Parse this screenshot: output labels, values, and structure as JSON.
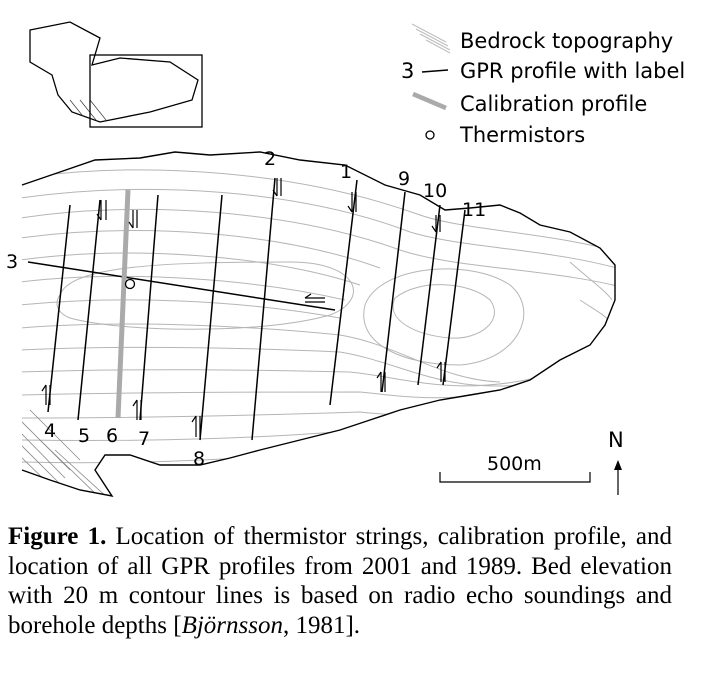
{
  "legend": {
    "bedrock": "Bedrock topography",
    "gpr_number": "3",
    "gpr": "GPR profile with label",
    "calibration": "Calibration profile",
    "thermistors": "Thermistors"
  },
  "profile_labels": {
    "p1": "1",
    "p2": "2",
    "p3": "3",
    "p4": "4",
    "p5": "5",
    "p6": "6",
    "p7": "7",
    "p8": "8",
    "p9": "9",
    "p10": "10",
    "p11": "11"
  },
  "scale_bar": "500m",
  "north": "N",
  "caption": {
    "label": "Figure 1.",
    "text_1": "Location of thermistor strings, calibration profile, and location of all GPR profiles from 2001 and 1989. Bed elevation with 20 m contour lines is based on radio echo soundings and borehole depths [",
    "citation_author": "Björnsson",
    "text_2": ", 1981]."
  }
}
